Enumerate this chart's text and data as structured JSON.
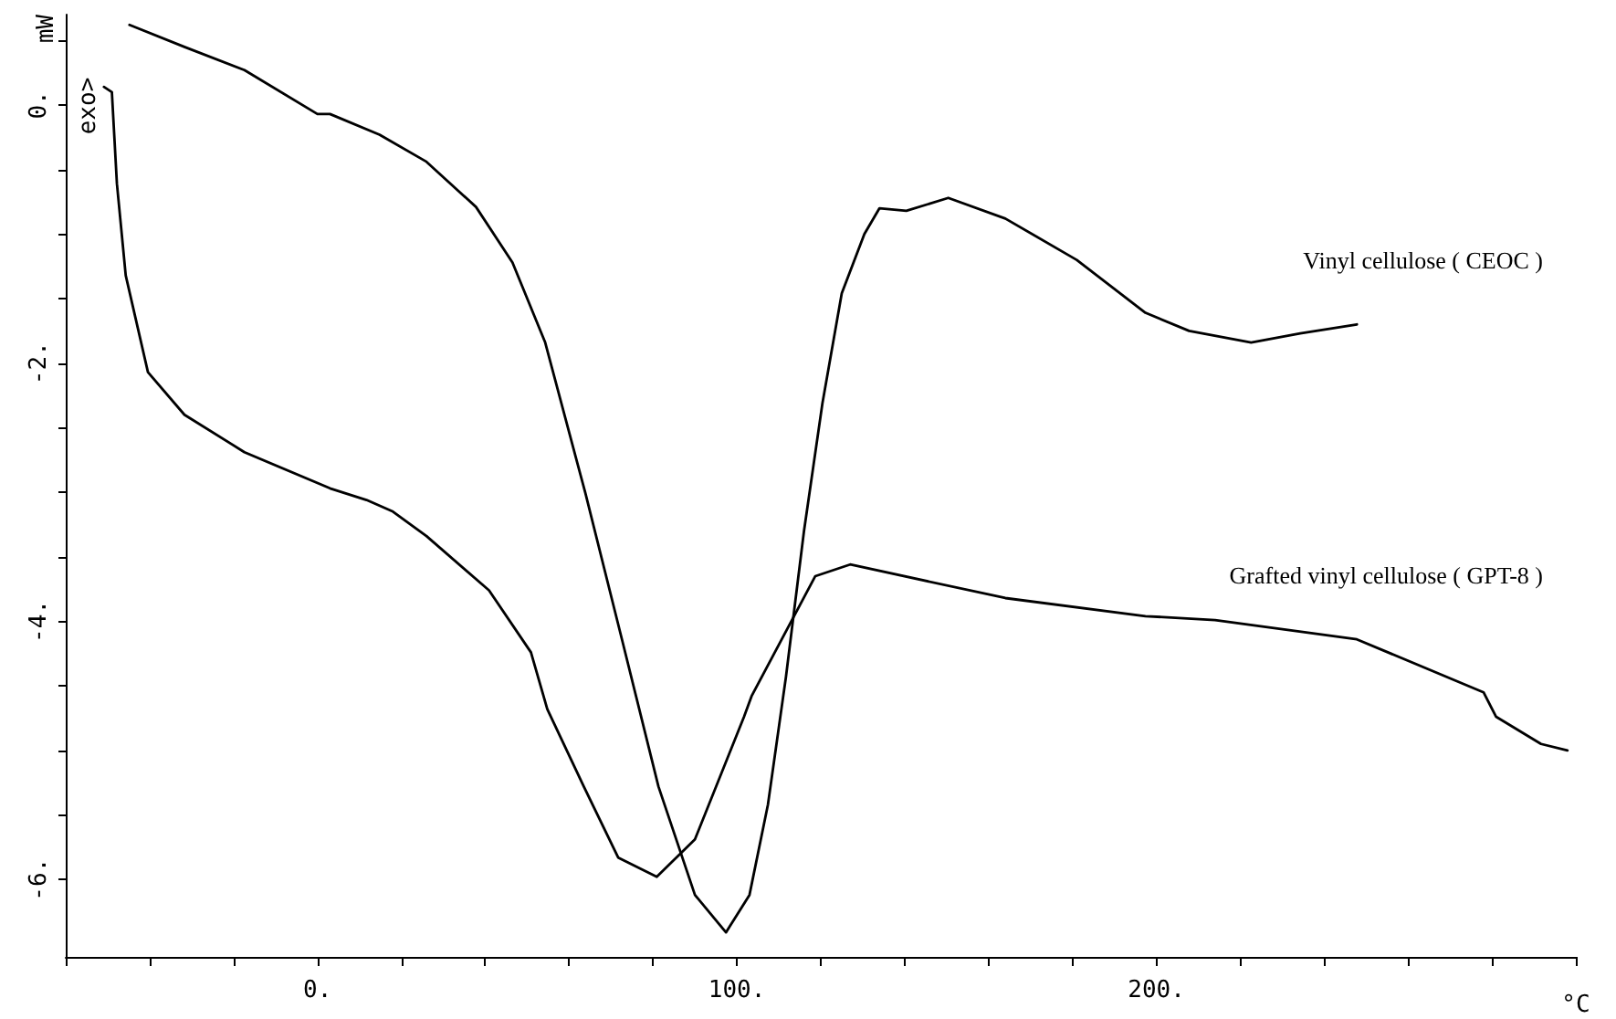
{
  "chart_data": {
    "type": "line",
    "xlabel": "°C",
    "ylabel": "mW",
    "annotations": [
      "exo>"
    ],
    "xlim": [
      -60,
      300
    ],
    "ylim": [
      -6.6,
      0.7
    ],
    "xticks": [
      {
        "value": -60,
        "label": null
      },
      {
        "value": -40,
        "label": null
      },
      {
        "value": -20,
        "label": null
      },
      {
        "value": 0,
        "label": "0."
      },
      {
        "value": 20,
        "label": null
      },
      {
        "value": 40,
        "label": null
      },
      {
        "value": 60,
        "label": null
      },
      {
        "value": 80,
        "label": null
      },
      {
        "value": 100,
        "label": "100."
      },
      {
        "value": 120,
        "label": null
      },
      {
        "value": 140,
        "label": null
      },
      {
        "value": 160,
        "label": null
      },
      {
        "value": 180,
        "label": null
      },
      {
        "value": 200,
        "label": "200."
      },
      {
        "value": 220,
        "label": null
      },
      {
        "value": 240,
        "label": null
      },
      {
        "value": 260,
        "label": null
      },
      {
        "value": 280,
        "label": null
      },
      {
        "value": 300,
        "label": null
      }
    ],
    "yticks": [
      {
        "value": -6,
        "label": "-6."
      },
      {
        "value": -5.5,
        "label": null
      },
      {
        "value": -5,
        "label": null
      },
      {
        "value": -4.5,
        "label": null
      },
      {
        "value": -4,
        "label": "-4."
      },
      {
        "value": -3.5,
        "label": null
      },
      {
        "value": -3,
        "label": null
      },
      {
        "value": -2.5,
        "label": null
      },
      {
        "value": -2,
        "label": "-2."
      },
      {
        "value": -1.5,
        "label": null
      },
      {
        "value": -1,
        "label": null
      },
      {
        "value": -0.5,
        "label": null
      },
      {
        "value": 0,
        "label": "0."
      },
      {
        "value": 0.5,
        "label": null
      }
    ],
    "grid": false,
    "legend": false,
    "marker": "none",
    "line_style": "solid",
    "series": [
      {
        "name": "Vinyl cellulose ( CEOC )",
        "color": "#000000",
        "x": [
          -44.8,
          -31.7,
          -17.4,
          0,
          3,
          14.8,
          26,
          37.8,
          46.5,
          54.3,
          63.9,
          72.6,
          81.3,
          90,
          97.4,
          103,
          107.4,
          111.7,
          116,
          120.4,
          125,
          130.4,
          134,
          140.4,
          150.4,
          164,
          181,
          197.4,
          207.8,
          222.6,
          234.3,
          247.8
        ],
        "values": [
          0.62,
          0.45,
          0.27,
          -0.07,
          -0.07,
          -0.23,
          -0.44,
          -0.79,
          -1.22,
          -1.84,
          -3.01,
          -4.14,
          -5.28,
          -6.12,
          -6.41,
          -6.12,
          -5.42,
          -4.43,
          -3.3,
          -2.31,
          -1.46,
          -1.0,
          -0.8,
          -0.82,
          -0.72,
          -0.88,
          -1.2,
          -1.61,
          -1.75,
          -1.84,
          -1.77,
          -1.7
        ]
      },
      {
        "name": "Grafted vinyl cellulose ( GPT-8 )",
        "color": "#000000",
        "x": [
          -50.9,
          -49,
          -47.8,
          -45.7,
          -40.4,
          -31.7,
          -17.4,
          3,
          11.7,
          18,
          26,
          40.9,
          50.9,
          54.8,
          63.5,
          71.7,
          80.9,
          90,
          101.7,
          103.5,
          118.7,
          127,
          164,
          197.4,
          214,
          247.8,
          278,
          281,
          291.7,
          298
        ],
        "values": [
          0.14,
          0.1,
          -0.61,
          -1.32,
          -2.07,
          -2.4,
          -2.69,
          -2.97,
          -3.06,
          -3.15,
          -3.34,
          -3.76,
          -4.24,
          -4.68,
          -5.28,
          -5.83,
          -5.98,
          -5.69,
          -4.74,
          -4.58,
          -3.65,
          -3.56,
          -3.82,
          -3.96,
          -3.99,
          -4.14,
          -4.55,
          -4.74,
          -4.95,
          -5.0
        ]
      }
    ]
  }
}
